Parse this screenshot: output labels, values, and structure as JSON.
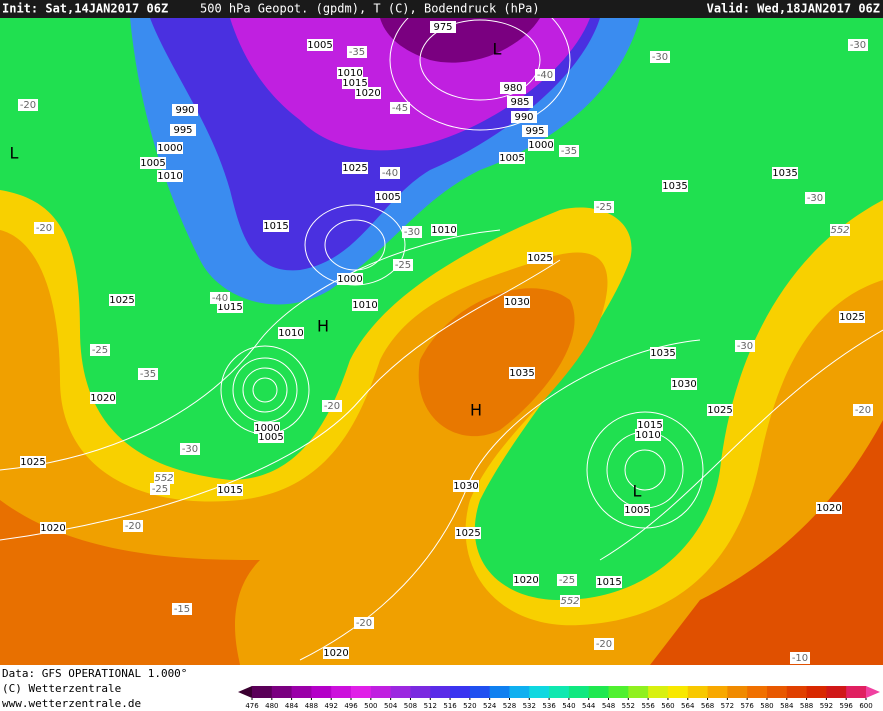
{
  "header": {
    "init": "Init: Sat,14JAN2017 06Z",
    "title": "500 hPa Geopot. (gpdm), T (C), Bodendruck (hPa)",
    "valid": "Valid: Wed,18JAN2017 06Z"
  },
  "footer": {
    "data_source": "Data: GFS OPERATIONAL 1.000°",
    "copyright": "(C) Wetterzentrale",
    "website": "www.wetterzentrale.de"
  },
  "map": {
    "isobar_labels": [
      "1005",
      "975",
      "1010",
      "1015",
      "1020",
      "980",
      "985",
      "990",
      "995",
      "1000",
      "1005",
      "990",
      "995",
      "1000",
      "1005",
      "1010",
      "1025",
      "1005",
      "1015",
      "1010",
      "1000",
      "1010",
      "1015",
      "1025",
      "1010",
      "1030",
      "1025",
      "1035",
      "1035",
      "1025",
      "1035",
      "1030",
      "1025",
      "1035",
      "1020",
      "1000",
      "1005",
      "1015",
      "1010",
      "1005",
      "1025",
      "1015",
      "1030",
      "1020",
      "1020",
      "1025",
      "1020",
      "1015",
      "1020"
    ],
    "temperature_labels": [
      "-35",
      "-40",
      "-45",
      "-40",
      "-35",
      "-30",
      "-30",
      "-20",
      "-30",
      "-25",
      "-40",
      "-20",
      "-25",
      "-35",
      "-20",
      "-30",
      "-25",
      "-20",
      "-15",
      "-20",
      "-25",
      "-30",
      "-20",
      "-20",
      "-10",
      "-30",
      "-25"
    ],
    "height_labels": [
      "552",
      "552",
      "552"
    ],
    "pressure_centers": [
      "H",
      "H",
      "L",
      "L",
      "L"
    ]
  },
  "colorbar": {
    "ticks": [
      476,
      480,
      484,
      488,
      492,
      496,
      500,
      504,
      508,
      512,
      516,
      520,
      524,
      528,
      532,
      536,
      540,
      544,
      548,
      552,
      556,
      560,
      564,
      568,
      572,
      576,
      580,
      584,
      588,
      592,
      596,
      600
    ],
    "colors": [
      "#3a0030",
      "#5a0058",
      "#7a0080",
      "#9a00a8",
      "#b400c8",
      "#cc10dc",
      "#e020e8",
      "#c020e0",
      "#9c28e0",
      "#7a2ae0",
      "#5a2ce8",
      "#3a34f0",
      "#2050f0",
      "#1080f0",
      "#10b0f0",
      "#10d8e0",
      "#10e8b0",
      "#10e880",
      "#20e850",
      "#50f030",
      "#90f020",
      "#d8f010",
      "#f8e800",
      "#f8c800",
      "#f8a800",
      "#f08a00",
      "#f07000",
      "#e85800",
      "#e04000",
      "#d82800",
      "#d01818",
      "#e02060",
      "#f040a0"
    ]
  }
}
